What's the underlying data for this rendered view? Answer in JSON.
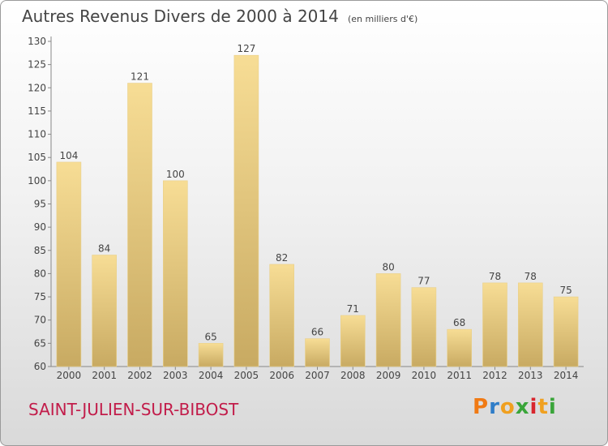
{
  "chart_data": {
    "type": "bar",
    "title": "Autres Revenus Divers de 2000 à 2014",
    "subtitle": "(en milliers d'€)",
    "categories": [
      "2000",
      "2001",
      "2002",
      "2003",
      "2004",
      "2005",
      "2006",
      "2007",
      "2008",
      "2009",
      "2010",
      "2011",
      "2012",
      "2013",
      "2014"
    ],
    "values": [
      104,
      84,
      121,
      100,
      65,
      127,
      82,
      66,
      71,
      80,
      77,
      68,
      78,
      78,
      75
    ],
    "ylim": [
      60,
      130
    ],
    "yticks": [
      60,
      65,
      70,
      75,
      80,
      85,
      90,
      95,
      100,
      105,
      110,
      115,
      120,
      125,
      130
    ],
    "grid": false,
    "colors": {
      "bar_top": "#f7dd95",
      "bar_bottom": "#c8aa62",
      "axis": "#888888",
      "text": "#444444"
    }
  },
  "location": "SAINT-JULIEN-SUR-BIBOST",
  "logo": {
    "text": "Proxiti"
  }
}
